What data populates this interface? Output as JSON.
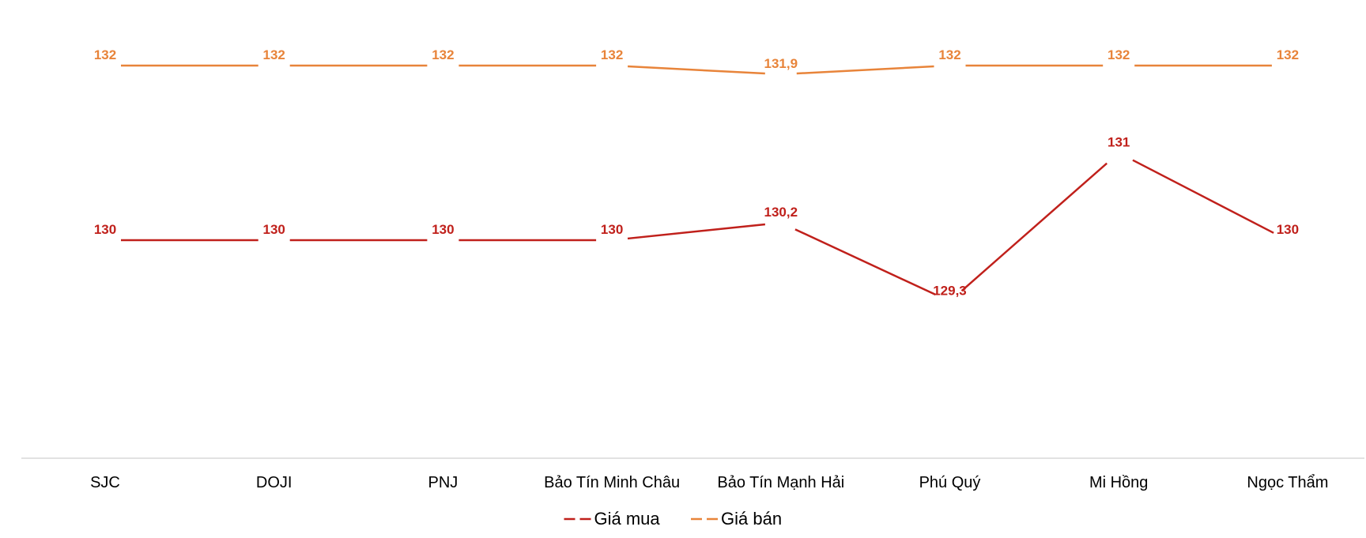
{
  "chart_data": {
    "type": "line",
    "title": "",
    "xlabel": "",
    "ylabel": "",
    "categories": [
      "SJC",
      "DOJI",
      "PNJ",
      "Bảo Tín Minh Châu",
      "Bảo Tín Mạnh Hải",
      "Phú Quý",
      "Mi Hồng",
      "Ngọc Thẩm"
    ],
    "series": [
      {
        "name": "Giá mua",
        "color": "#C0201B",
        "values": [
          130,
          130,
          130,
          130,
          130.2,
          129.3,
          131,
          130
        ],
        "labels": [
          "130",
          "130",
          "130",
          "130",
          "130,2",
          "129,3",
          "131",
          "130"
        ]
      },
      {
        "name": "Giá bán",
        "color": "#E8843A",
        "values": [
          132,
          132,
          132,
          132,
          131.9,
          132,
          132,
          132
        ],
        "labels": [
          "132",
          "132",
          "132",
          "132",
          "131,9",
          "132",
          "132",
          "132"
        ]
      }
    ],
    "ylim": [
      128,
      132.5
    ],
    "grid": false,
    "legend_position": "bottom",
    "axis_color": "#D9D9D9"
  }
}
